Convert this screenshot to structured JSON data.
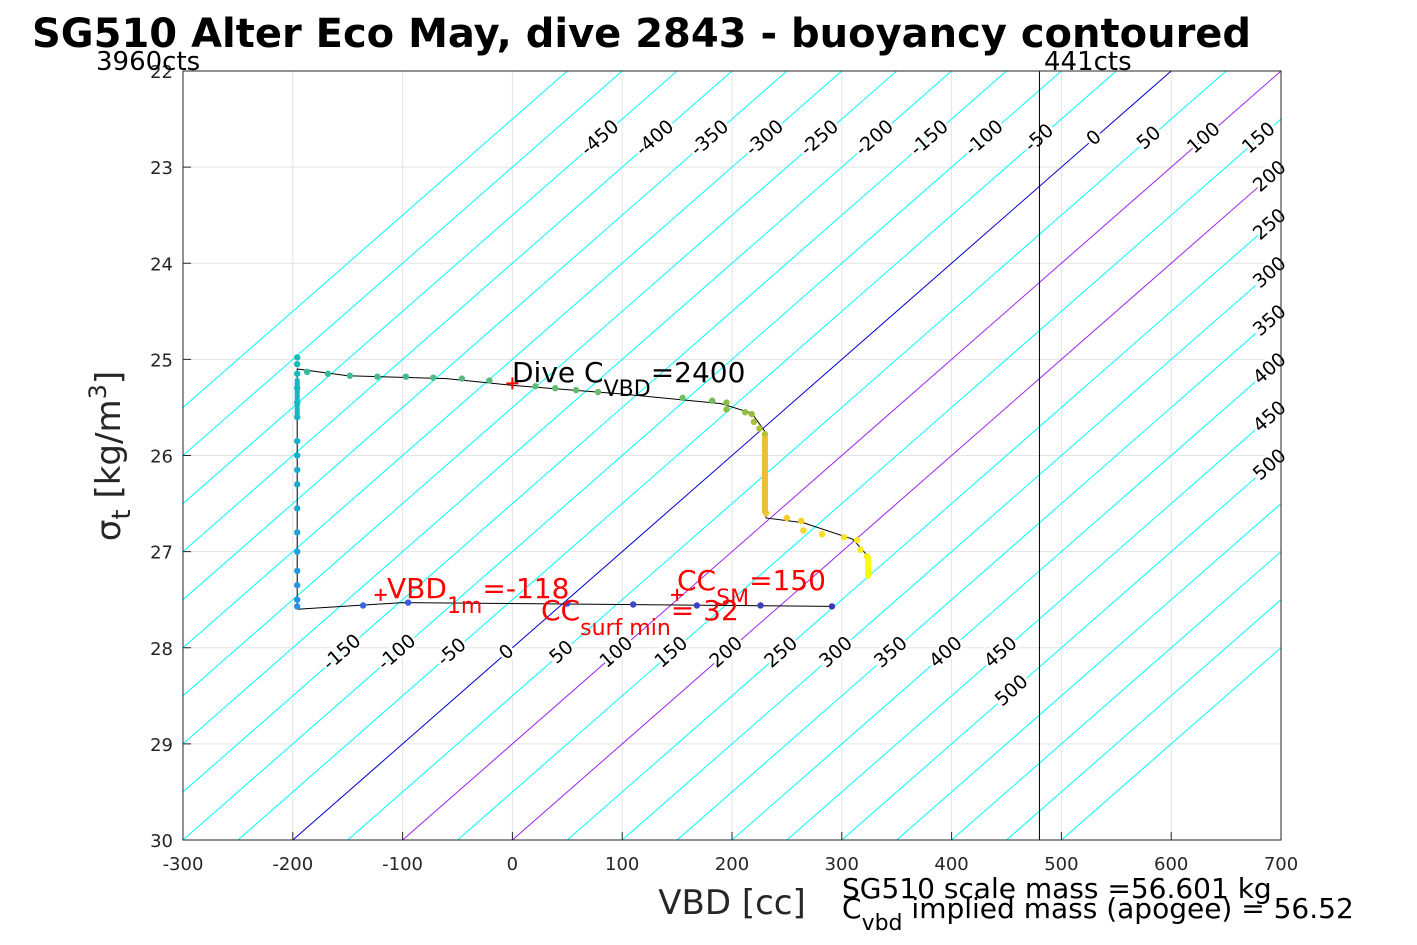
{
  "chart_data": {
    "type": "scatter",
    "title": "SG510 Alter Eco May, dive 2843 - buoyancy contoured",
    "xlabel": "VBD [cc]",
    "ylabel_symbol": "σ",
    "ylabel_sub": "t",
    "ylabel_units": "[kg/m",
    "ylabel_sup": "3",
    "ylabel_close": "]",
    "xlim": [
      -300,
      700
    ],
    "ylim": [
      30,
      22
    ],
    "y_reversed": true,
    "grid": true,
    "x_ticks": [
      -300,
      -200,
      -100,
      0,
      100,
      200,
      300,
      400,
      500,
      600,
      700
    ],
    "y_ticks": [
      22,
      23,
      24,
      25,
      26,
      27,
      28,
      29,
      30
    ],
    "x_tick_labels": [
      "-300",
      "-200",
      "-100",
      "0",
      "100",
      "200",
      "300",
      "400",
      "500",
      "600",
      "700"
    ],
    "y_tick_labels": [
      "22",
      "23",
      "24",
      "25",
      "26",
      "27",
      "28",
      "29",
      "30"
    ],
    "vbd_min_label": "3960cts",
    "vbd_max_label": "441cts",
    "vbd_max_cc": 480,
    "contours": {
      "slope_cc_per_sigma": -100,
      "zero_x_at_sigma30": -200,
      "levels": [
        -550,
        -500,
        -450,
        -400,
        -350,
        -300,
        -250,
        -200,
        -150,
        -100,
        -50,
        0,
        50,
        100,
        150,
        200,
        250,
        300,
        350,
        400,
        450,
        500,
        550,
        600,
        650,
        700
      ],
      "top_labels": [
        "-450",
        "-400",
        "-350",
        "-300",
        "-250",
        "-200",
        "-150",
        "-100",
        "-50",
        "0",
        "50",
        "100",
        "150",
        "200",
        "250",
        "300",
        "350",
        "400",
        "450",
        "500"
      ],
      "top_label_levels": [
        -450,
        -400,
        -350,
        -300,
        -250,
        -200,
        -150,
        -100,
        -50,
        0,
        50,
        100,
        150,
        200,
        250,
        300,
        350,
        400,
        450,
        500
      ],
      "bottom_labels": [
        "-150",
        "-100",
        "-50",
        "0",
        "50",
        "100",
        "150",
        "200",
        "250",
        "300",
        "350",
        "400",
        "450",
        "500"
      ],
      "bottom_label_levels": [
        -150,
        -100,
        -50,
        0,
        50,
        100,
        150,
        200,
        250,
        300,
        350,
        400,
        450,
        500
      ],
      "highlight_zero_color": "#0000cd",
      "highlight_purple_color": "#a020f0",
      "highlight_purple_levels": [
        100,
        200
      ],
      "contour_color": "#00ffff"
    },
    "dive_points": [
      {
        "x": -196,
        "y": 24.98,
        "c": 0.52
      },
      {
        "x": -196,
        "y": 25.05,
        "c": 0.52
      },
      {
        "x": -196,
        "y": 25.15,
        "c": 0.5
      },
      {
        "x": -196,
        "y": 25.3,
        "c": 0.5
      },
      {
        "x": -196,
        "y": 25.45,
        "c": 0.49
      },
      {
        "x": -196,
        "y": 25.6,
        "c": 0.48
      },
      {
        "x": -196,
        "y": 25.85,
        "c": 0.47
      },
      {
        "x": -196,
        "y": 26.0,
        "c": 0.46
      },
      {
        "x": -196,
        "y": 26.15,
        "c": 0.45
      },
      {
        "x": -196,
        "y": 26.3,
        "c": 0.45
      },
      {
        "x": -196,
        "y": 26.55,
        "c": 0.43
      },
      {
        "x": -196,
        "y": 26.8,
        "c": 0.42
      },
      {
        "x": -196,
        "y": 27.0,
        "c": 0.4
      },
      {
        "x": -196,
        "y": 27.2,
        "c": 0.38
      },
      {
        "x": -196,
        "y": 27.35,
        "c": 0.37
      },
      {
        "x": -196,
        "y": 27.5,
        "c": 0.35
      },
      {
        "x": -196,
        "y": 27.57,
        "c": 0.33
      },
      {
        "x": -187,
        "y": 25.13,
        "c": 0.57
      },
      {
        "x": -168,
        "y": 25.15,
        "c": 0.58
      },
      {
        "x": -148,
        "y": 25.17,
        "c": 0.59
      },
      {
        "x": -123,
        "y": 25.18,
        "c": 0.6
      },
      {
        "x": -97,
        "y": 25.18,
        "c": 0.6
      },
      {
        "x": -72,
        "y": 25.19,
        "c": 0.61
      },
      {
        "x": -46,
        "y": 25.2,
        "c": 0.62
      },
      {
        "x": -21,
        "y": 25.22,
        "c": 0.63
      },
      {
        "x": 21,
        "y": 25.28,
        "c": 0.64
      },
      {
        "x": 39,
        "y": 25.3,
        "c": 0.65
      },
      {
        "x": 58,
        "y": 25.32,
        "c": 0.65
      },
      {
        "x": 78,
        "y": 25.34,
        "c": 0.66
      },
      {
        "x": 155,
        "y": 25.4,
        "c": 0.68
      },
      {
        "x": 182,
        "y": 25.43,
        "c": 0.69
      },
      {
        "x": 195,
        "y": 25.45,
        "c": 0.72
      },
      {
        "x": 195,
        "y": 25.52,
        "c": 0.73
      },
      {
        "x": 212,
        "y": 25.55,
        "c": 0.74
      },
      {
        "x": 218,
        "y": 25.57,
        "c": 0.75
      },
      {
        "x": 220,
        "y": 25.65,
        "c": 0.77
      },
      {
        "x": 225,
        "y": 25.72,
        "c": 0.78
      },
      {
        "x": 230,
        "y": 25.78,
        "c": 0.8
      },
      {
        "x": 230,
        "y": 26.0,
        "c": 0.83
      },
      {
        "x": 230,
        "y": 26.2,
        "c": 0.86
      },
      {
        "x": 230,
        "y": 26.4,
        "c": 0.88
      },
      {
        "x": 231,
        "y": 26.6,
        "c": 0.9
      },
      {
        "x": 250,
        "y": 26.65,
        "c": 0.91
      },
      {
        "x": 263,
        "y": 26.68,
        "c": 0.92
      },
      {
        "x": 265,
        "y": 26.78,
        "c": 0.93
      },
      {
        "x": 282,
        "y": 26.82,
        "c": 0.94
      },
      {
        "x": 302,
        "y": 26.85,
        "c": 0.95
      },
      {
        "x": 314,
        "y": 26.88,
        "c": 0.96
      },
      {
        "x": 317,
        "y": 26.98,
        "c": 0.97
      },
      {
        "x": 323,
        "y": 27.05,
        "c": 0.98
      },
      {
        "x": 324,
        "y": 27.15,
        "c": 0.99
      },
      {
        "x": 324,
        "y": 27.25,
        "c": 1.0
      },
      {
        "x": -136,
        "y": 27.56,
        "c": 0.18
      },
      {
        "x": -95,
        "y": 27.53,
        "c": 0.16
      },
      {
        "x": 50,
        "y": 27.54,
        "c": 0.12
      },
      {
        "x": 110,
        "y": 27.55,
        "c": 0.1
      },
      {
        "x": 168,
        "y": 27.56,
        "c": 0.08
      },
      {
        "x": 226,
        "y": 27.56,
        "c": 0.07
      },
      {
        "x": 291,
        "y": 27.57,
        "c": 0.05
      }
    ],
    "descent_path": [
      [
        -196,
        27.6
      ],
      [
        -196,
        25.1
      ],
      [
        -150,
        25.17
      ],
      [
        -60,
        25.2
      ],
      [
        0,
        25.27
      ],
      [
        100,
        25.36
      ],
      [
        190,
        25.46
      ],
      [
        218,
        25.56
      ],
      [
        230,
        25.75
      ],
      [
        231,
        26.65
      ],
      [
        265,
        26.7
      ],
      [
        310,
        26.87
      ],
      [
        324,
        27.05
      ],
      [
        324,
        27.25
      ]
    ],
    "ascent_path": [
      [
        -196,
        27.6
      ],
      [
        -100,
        27.53
      ],
      [
        100,
        27.55
      ],
      [
        200,
        27.56
      ],
      [
        291,
        27.57
      ]
    ],
    "red_markers": [
      {
        "x": 0,
        "y": 25.25
      },
      {
        "x": -120,
        "y": 27.45
      },
      {
        "x": 150,
        "y": 27.45
      }
    ],
    "annotations": {
      "dive_cvbd": {
        "main": "Dive C",
        "sub": "VBD",
        "rest": "=2400"
      },
      "vbd1m": {
        "main": "VBD",
        "sub": "1m",
        "rest": "=-118"
      },
      "ccsm": {
        "main": "CC",
        "sub": "SM",
        "rest": "=150"
      },
      "ccsurf": {
        "main": "CC",
        "sub": "surf min",
        "rest": "= 32"
      }
    },
    "footer": {
      "line1": "SG510 scale mass =56.601 kg",
      "line2_main": "C",
      "line2_sub": "vbd",
      "line2_rest": " implied mass (apogee) = 56.52"
    }
  }
}
